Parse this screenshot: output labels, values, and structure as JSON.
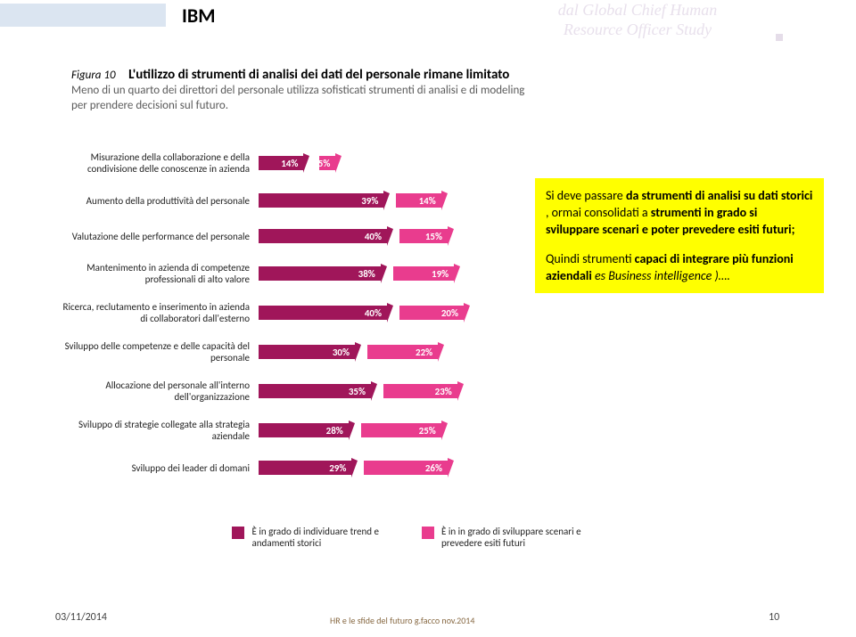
{
  "header": {
    "title": "IBM",
    "studyStrip": "dal Global Chief Human\nResource Officer Study"
  },
  "figure": {
    "num": "Figura 10",
    "title": "L'utilizzo di strumenti di analisi dei dati del personale rimane limitato",
    "sub": "Meno di un quarto dei direttori del personale utilizza sofisticati strumenti di analisi e di modeling per prendere decisioni sul futuro."
  },
  "chart": {
    "scale": 3.6,
    "colors": {
      "dark": "#a0165a",
      "pink": "#e93c8e"
    },
    "rows": [
      {
        "label": "Misurazione della collaborazione e della condivisione delle conoscenze in azienda",
        "dark": 14,
        "pink": 5,
        "gap": 18
      },
      {
        "label": "Aumento della produttività del personale",
        "dark": 39,
        "pink": 14,
        "gap": 14
      },
      {
        "label": "Valutazione delle performance del personale",
        "dark": 40,
        "pink": 15,
        "gap": 14
      },
      {
        "label": "Mantenimento in azienda di competenze professionali di alto valore",
        "dark": 38,
        "pink": 19,
        "gap": 14
      },
      {
        "label": "Ricerca, reclutamento e inserimento in azienda di collaboratori dall'esterno",
        "dark": 40,
        "pink": 20,
        "gap": 14
      },
      {
        "label": "Sviluppo delle competenze e delle capacità del personale",
        "dark": 30,
        "pink": 22,
        "gap": 14
      },
      {
        "label": "Allocazione del personale all'interno dell'organizzazione",
        "dark": 35,
        "pink": 23,
        "gap": 14
      },
      {
        "label": "Sviluppo di strategie collegate alla strategia aziendale",
        "dark": 28,
        "pink": 25,
        "gap": 14
      },
      {
        "label": "Sviluppo dei leader di domani",
        "dark": 29,
        "pink": 26,
        "gap": 14
      }
    ],
    "legend": {
      "a": "È in grado di individuare trend e andamenti storici",
      "b": "È in in grado di sviluppare scenari e prevedere esiti futuri"
    }
  },
  "callout": {
    "p1a": "Si deve passare ",
    "p1b": "da strumenti  di analisi su dati storici ",
    "p1c": ", ormai consolidati a ",
    "p1d": "strumenti in grado si  sviluppare scenari e poter prevedere esiti futuri;",
    "p2a": "Quindi strumenti  ",
    "p2b": "capaci di integrare  più funzioni aziendali ",
    "p2c": " es Business intelligence )…."
  },
  "footer": {
    "date": "03/11/2014",
    "mid": "HR e le sfide del futuro g.facco nov.2014",
    "num": "10"
  }
}
